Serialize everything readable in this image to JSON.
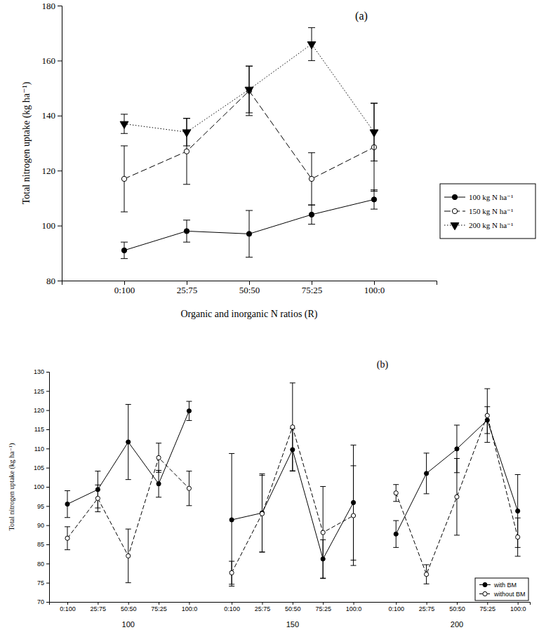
{
  "chart_data": [
    {
      "type": "line",
      "title": "(a)",
      "x_label": "Organic and inorganic N ratios (R)",
      "y_label": "Total nitrogen uptake (kg ha⁻¹)",
      "categories": [
        "0:100",
        "25:75",
        "50:50",
        "75:25",
        "100:0"
      ],
      "series": [
        {
          "name": "100 kg N ha⁻¹",
          "color": "#000000",
          "marker": "circle",
          "line_style": "solid",
          "values": [
            91,
            98,
            97,
            104,
            109.5
          ],
          "errors": [
            3,
            4,
            8.5,
            3.5,
            3.5
          ]
        },
        {
          "name": "150 kg N ha⁻¹",
          "color": "#000000",
          "marker": "open_circle",
          "line_style": "dashed",
          "values": [
            117,
            127,
            149,
            117,
            128.5
          ],
          "errors": [
            12,
            12,
            9,
            9.5,
            16
          ]
        },
        {
          "name": "200 kg N ha⁻¹",
          "color": "#000000",
          "marker": "triangle_down",
          "line_style": "dotted",
          "values": [
            137,
            134,
            149.5,
            166,
            134
          ],
          "errors": [
            3.5,
            5,
            8.5,
            6,
            10.5
          ]
        }
      ],
      "ylim": [
        80,
        180
      ],
      "yticks": [
        80,
        100,
        120,
        140,
        160,
        180
      ],
      "legend": "right"
    },
    {
      "type": "line",
      "title": "(b)",
      "y_label": "Total nitrogen uptake (kg ha⁻¹)",
      "categories": [
        "0:100",
        "25:75",
        "50:50",
        "75:25",
        "100:0",
        "0:100",
        "25:75",
        "50:50",
        "75:25",
        "100:0",
        "0:100",
        "25:75",
        "50:50",
        "75:25",
        "100:0"
      ],
      "groups": [
        "100",
        "150",
        "200"
      ],
      "series": [
        {
          "name": "with BM",
          "color": "#000000",
          "marker": "circle",
          "line_style": "solid",
          "values": [
            95.5,
            99.3,
            111.7,
            100.8,
            119.8,
            91.4,
            93.2,
            109.7,
            81.2,
            95.9,
            87.7,
            103.5,
            109.9,
            117.4,
            93.7
          ],
          "errors": [
            3.5,
            4.8,
            9.8,
            3.5,
            2.5,
            17.3,
            10.2,
            5.5,
            5,
            15,
            3.5,
            5.3,
            6.2,
            3.5,
            9.5
          ]
        },
        {
          "name": "without BM",
          "color": "#000000",
          "marker": "open_circle",
          "line_style": "dashed",
          "values": [
            86.6,
            97,
            82,
            107.6,
            99.6,
            77.6,
            93,
            115.6,
            88.1,
            92.5,
            98.4,
            77.2,
            97.4,
            118.6,
            86.9
          ],
          "errors": [
            3,
            3.5,
            7,
            3.8,
            4.5,
            3,
            10,
            11.5,
            12,
            13,
            2.2,
            2.5,
            10,
            7,
            5
          ]
        }
      ],
      "ylim": [
        70,
        130
      ],
      "yticks": [
        70,
        75,
        80,
        85,
        90,
        95,
        100,
        105,
        110,
        115,
        120,
        125,
        130
      ],
      "legend": "lower right"
    }
  ]
}
